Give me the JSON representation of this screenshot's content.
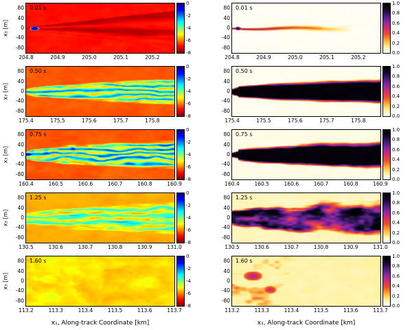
{
  "figure": {
    "bottom_axis_label": "x₁, Along-track Coordinate [km]",
    "y_axis_label": "x₃ [m]"
  },
  "chart_data": {
    "type": "heatmap",
    "title": "",
    "description": "5x2 grid of aircraft-wake simulation cross-sections at five times. Left column: jet-colormap field (0 to -8) showing wake velocity/temperature structure on an orange-red background. Right column: white-to-black plume colormap (0.0 to 1.0) showing scalar concentration; dark plume spreads and fragments with time.",
    "grid": {
      "rows": 5,
      "columns": 2
    },
    "y_ticks": [
      "80",
      "40",
      "0",
      "-40",
      "-80"
    ],
    "y_range": [
      100,
      -100
    ],
    "columns": [
      {
        "id": "left",
        "colormap": "jet (blue=0 top, red=-8 bottom)",
        "colorbar_range": [
          0,
          -8
        ],
        "colorbar_ticks": [
          "0",
          "-2",
          "-4",
          "-6",
          "-8"
        ]
      },
      {
        "id": "right",
        "colormap": "white-yellow-red-purple-black (black=1.0 top, white=0.0 bottom)",
        "colorbar_range": [
          1.0,
          0.0
        ],
        "colorbar_ticks": [
          "1.0",
          "0.8",
          "0.6",
          "0.4",
          "0.2",
          "0.0"
        ]
      }
    ],
    "rows": [
      {
        "time_label": "0.01 s",
        "x_min": 204.8,
        "x_max": 205.27,
        "x_ticks": [
          "204.8",
          "204.9",
          "205.0",
          "205.1",
          "205.2"
        ],
        "left_description": "Dark red background, compact blue vortex oval at left near y=0, thin dark streaks fanning right",
        "right_description": "White background with thin yellow-orange streak emanating right from a small dark core at left"
      },
      {
        "time_label": "0.50 s",
        "x_min": 175.4,
        "x_max": 175.87,
        "x_ticks": [
          "175.4",
          "175.5",
          "175.6",
          "175.7",
          "175.8"
        ],
        "left_description": "Orange background; expanding wedge wake of green/cyan striations with yellow edges",
        "right_description": "Solid black plume wedge widening to about +/-50 m, thin purple-red-yellow rim on white"
      },
      {
        "time_label": "0.75 s",
        "x_min": 160.4,
        "x_max": 160.9,
        "x_ticks": [
          "160.4",
          "160.5",
          "160.6",
          "160.7",
          "160.8",
          "160.9"
        ],
        "left_description": "Orange background; wider turbulent wake, cyan/green filaments with blue patches near left",
        "right_description": "Black plume, wavier scalloped edges, purple fringe, spans full panel width"
      },
      {
        "time_label": "1.25 s",
        "x_min": 130.5,
        "x_max": 131.0,
        "x_ticks": [
          "130.5",
          "130.6",
          "130.7",
          "130.8",
          "130.9",
          "131.0"
        ],
        "left_description": "Yellow-orange background; diffuse wake with green streaks, reduced contrast",
        "right_description": "Fragmented turbulent plume: black and purple billows with magenta edges on pale yellow"
      },
      {
        "time_label": "1.60 s",
        "x_min": 113.2,
        "x_max": 113.7,
        "x_ticks": [
          "113.2",
          "113.3",
          "113.4",
          "113.5",
          "113.6",
          "113.7"
        ],
        "left_description": "Yellow background with faint pale swirling wisps, weak contrast",
        "right_description": "Pale yellow field with faint pink/magenta wisps concentrated in left third"
      }
    ]
  }
}
